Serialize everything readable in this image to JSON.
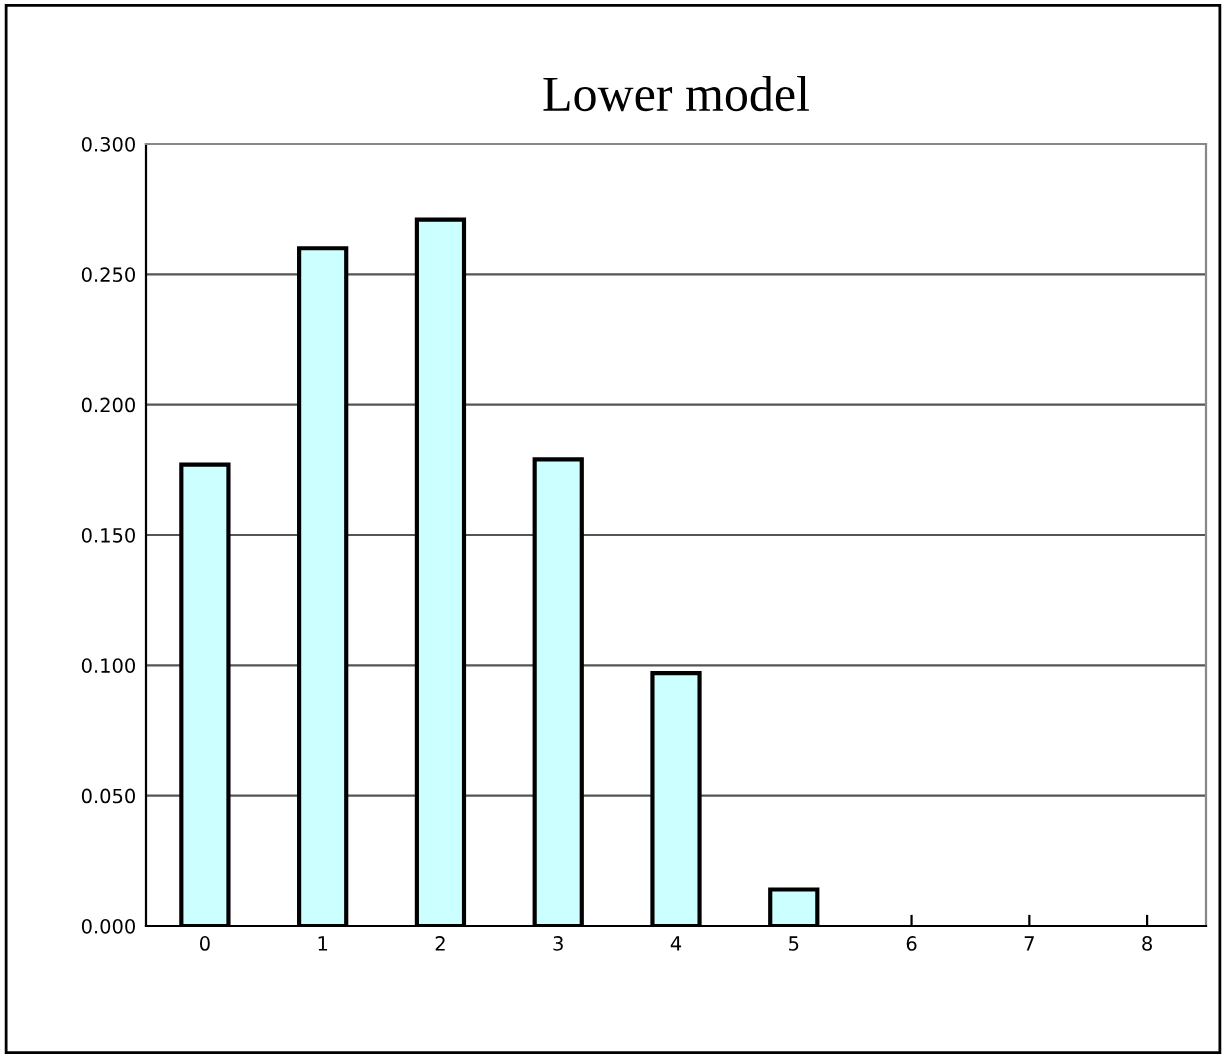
{
  "chart_data": {
    "type": "bar",
    "title": "Lower model",
    "categories": [
      "0",
      "1",
      "2",
      "3",
      "4",
      "5",
      "6",
      "7",
      "8"
    ],
    "values": [
      0.177,
      0.26,
      0.271,
      0.179,
      0.097,
      0.014,
      0,
      0,
      0
    ],
    "color": "#ccffff",
    "ylim": [
      0,
      0.3
    ],
    "yticks": [
      {
        "value": 0,
        "label": "0.000"
      },
      {
        "value": 0.05,
        "label": "0.050"
      },
      {
        "value": 0.1,
        "label": "0.100"
      },
      {
        "value": 0.15,
        "label": "0.150"
      },
      {
        "value": 0.2,
        "label": "0.200"
      },
      {
        "value": 0.25,
        "label": "0.250"
      },
      {
        "value": 0.3,
        "label": "0.300"
      }
    ],
    "grid": "y",
    "legend": false
  }
}
